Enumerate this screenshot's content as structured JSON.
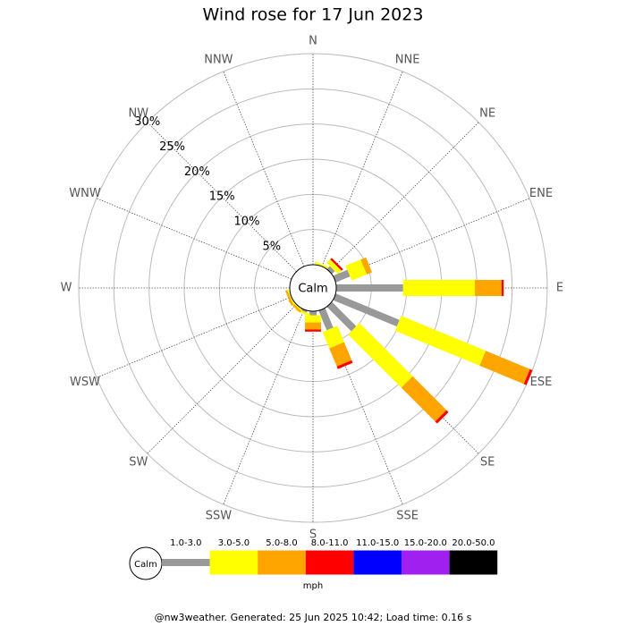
{
  "chart_data": {
    "type": "windrose",
    "title": "Wind rose for 17 Jun 2023",
    "calm_label": "Calm",
    "unit_label": "mph",
    "footer": "@nw3weather. Generated: 25 Jun 2025 10:42; Load time: 0.16 s",
    "categories": [
      "N",
      "NNE",
      "NE",
      "ENE",
      "E",
      "ESE",
      "SE",
      "SSE",
      "S",
      "SSW",
      "SW",
      "WSW",
      "W",
      "WNW",
      "NW",
      "NNW"
    ],
    "rlim": [
      0,
      30
    ],
    "rticks": [
      {
        "value": 5,
        "label": "5%"
      },
      {
        "value": 10,
        "label": "10%"
      },
      {
        "value": 15,
        "label": "15%"
      },
      {
        "value": 20,
        "label": "20%"
      },
      {
        "value": 25,
        "label": "25%"
      },
      {
        "value": 30,
        "label": "30%"
      }
    ],
    "series": [
      {
        "name": "1.0-3.0",
        "color": "#999999",
        "values": [
          0,
          0,
          0.6,
          2.2,
          9.5,
          9.8,
          4.9,
          3,
          0.6,
          0.3,
          0,
          0,
          0,
          0,
          0,
          0
        ]
      },
      {
        "name": "3.0-5.0",
        "color": "#ffff00",
        "values": [
          0,
          0.3,
          0.7,
          2.3,
          10.2,
          13,
          10.7,
          2.5,
          1,
          0.3,
          0.2,
          0.2,
          0,
          0,
          0,
          0
        ]
      },
      {
        "name": "5.0-8.0",
        "color": "#ffa500",
        "values": [
          0,
          0,
          0,
          0.8,
          3.8,
          6.8,
          6.8,
          2.8,
          1,
          0,
          0.3,
          0.3,
          0,
          0,
          0,
          0
        ]
      },
      {
        "name": "8.0-11.0",
        "color": "#ff0000",
        "values": [
          0,
          0,
          0.3,
          0,
          0.3,
          0.4,
          0.4,
          0.4,
          0.3,
          0,
          0,
          0,
          0,
          0,
          0,
          0
        ]
      },
      {
        "name": "11.0-15.0",
        "color": "#0000ff",
        "values": [
          0,
          0,
          0,
          0,
          0,
          0,
          0,
          0,
          0,
          0,
          0,
          0,
          0,
          0,
          0,
          0
        ]
      },
      {
        "name": "15.0-20.0",
        "color": "#a020f0",
        "values": [
          0,
          0,
          0,
          0,
          0,
          0,
          0,
          0,
          0,
          0,
          0,
          0,
          0,
          0,
          0,
          0
        ]
      },
      {
        "name": "20.0-50.0",
        "color": "#000000",
        "values": [
          0,
          0,
          0,
          0,
          0,
          0,
          0,
          0,
          0,
          0,
          0,
          0,
          0,
          0,
          0,
          0
        ]
      }
    ]
  }
}
